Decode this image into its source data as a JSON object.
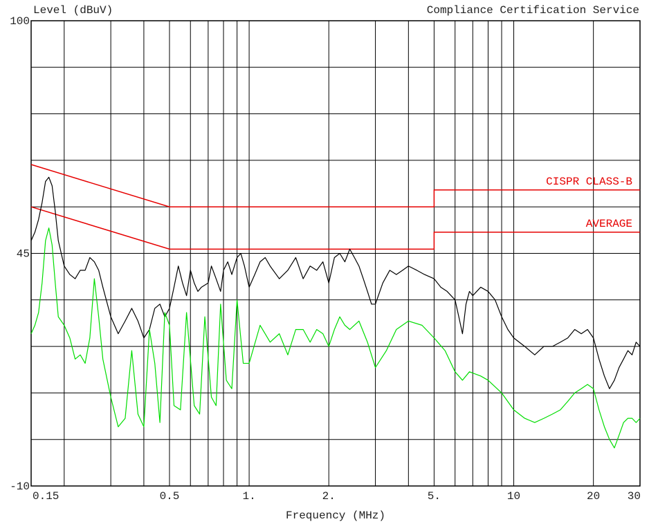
{
  "chart_data": {
    "type": "line",
    "xscale": "log",
    "title": "",
    "ylabel": "Level (dBuV)",
    "xlabel": "Frequency (MHz)",
    "header_right": "Compliance Certification Service",
    "ylim": [
      -10,
      100
    ],
    "xlim": [
      0.15,
      30
    ],
    "grid": true,
    "y_tick_labels": [
      {
        "value": 100,
        "label": "100"
      },
      {
        "value": 45,
        "label": "45"
      },
      {
        "value": -10,
        "label": "-10"
      }
    ],
    "x_tick_labels": [
      {
        "value": 0.15,
        "label": "0.15"
      },
      {
        "value": 0.5,
        "label": "0.5"
      },
      {
        "value": 1,
        "label": "1."
      },
      {
        "value": 2,
        "label": "2."
      },
      {
        "value": 5,
        "label": "5."
      },
      {
        "value": 10,
        "label": "10"
      },
      {
        "value": 20,
        "label": "20"
      },
      {
        "value": 30,
        "label": "30"
      }
    ],
    "x_gridlines": [
      0.2,
      0.3,
      0.4,
      0.5,
      0.6,
      0.7,
      0.8,
      0.9,
      1,
      2,
      3,
      4,
      5,
      6,
      7,
      8,
      9,
      10,
      20
    ],
    "y_gridlines": [
      -10,
      1,
      12,
      23,
      34,
      45,
      56,
      67,
      78,
      89,
      100
    ],
    "limit_lines": [
      {
        "name": "CISPR CLASS-B",
        "color": "#e60000",
        "points": [
          [
            0.15,
            66
          ],
          [
            0.5,
            56
          ],
          [
            5,
            56
          ],
          [
            5,
            60
          ],
          [
            30,
            60
          ]
        ]
      },
      {
        "name": "AVERAGE",
        "color": "#e60000",
        "points": [
          [
            0.15,
            56
          ],
          [
            0.5,
            46
          ],
          [
            5,
            46
          ],
          [
            5,
            50
          ],
          [
            30,
            50
          ]
        ]
      }
    ],
    "series": [
      {
        "color": "#000000",
        "points": [
          [
            0.15,
            48
          ],
          [
            0.155,
            50
          ],
          [
            0.16,
            53
          ],
          [
            0.165,
            57
          ],
          [
            0.17,
            62
          ],
          [
            0.175,
            63
          ],
          [
            0.18,
            61
          ],
          [
            0.185,
            55
          ],
          [
            0.19,
            48
          ],
          [
            0.2,
            42
          ],
          [
            0.21,
            40
          ],
          [
            0.22,
            39
          ],
          [
            0.23,
            41
          ],
          [
            0.24,
            41
          ],
          [
            0.25,
            44
          ],
          [
            0.26,
            43
          ],
          [
            0.27,
            41
          ],
          [
            0.28,
            37
          ],
          [
            0.3,
            30
          ],
          [
            0.32,
            26
          ],
          [
            0.34,
            29
          ],
          [
            0.36,
            32
          ],
          [
            0.38,
            29
          ],
          [
            0.4,
            25
          ],
          [
            0.42,
            27
          ],
          [
            0.44,
            32
          ],
          [
            0.46,
            33
          ],
          [
            0.48,
            30
          ],
          [
            0.5,
            32
          ],
          [
            0.52,
            37
          ],
          [
            0.54,
            42
          ],
          [
            0.56,
            38
          ],
          [
            0.58,
            35
          ],
          [
            0.6,
            41
          ],
          [
            0.62,
            38
          ],
          [
            0.64,
            36
          ],
          [
            0.66,
            37
          ],
          [
            0.7,
            38
          ],
          [
            0.72,
            42
          ],
          [
            0.75,
            39
          ],
          [
            0.78,
            36
          ],
          [
            0.8,
            41
          ],
          [
            0.83,
            43
          ],
          [
            0.86,
            40
          ],
          [
            0.9,
            44
          ],
          [
            0.93,
            45
          ],
          [
            0.96,
            42
          ],
          [
            1.0,
            37
          ],
          [
            1.05,
            40
          ],
          [
            1.1,
            43
          ],
          [
            1.15,
            44
          ],
          [
            1.2,
            42
          ],
          [
            1.3,
            39
          ],
          [
            1.4,
            41
          ],
          [
            1.5,
            44
          ],
          [
            1.6,
            39
          ],
          [
            1.7,
            42
          ],
          [
            1.8,
            41
          ],
          [
            1.9,
            43
          ],
          [
            2.0,
            38
          ],
          [
            2.1,
            44
          ],
          [
            2.2,
            45
          ],
          [
            2.3,
            43
          ],
          [
            2.4,
            46
          ],
          [
            2.5,
            44
          ],
          [
            2.6,
            42
          ],
          [
            2.7,
            39
          ],
          [
            2.8,
            36
          ],
          [
            2.9,
            33
          ],
          [
            3.0,
            33
          ],
          [
            3.2,
            38
          ],
          [
            3.4,
            41
          ],
          [
            3.6,
            40
          ],
          [
            3.8,
            41
          ],
          [
            4.0,
            42
          ],
          [
            4.3,
            41
          ],
          [
            4.6,
            40
          ],
          [
            5.0,
            39
          ],
          [
            5.3,
            37
          ],
          [
            5.6,
            36
          ],
          [
            6.0,
            34
          ],
          [
            6.2,
            30
          ],
          [
            6.4,
            26
          ],
          [
            6.6,
            33
          ],
          [
            6.8,
            36
          ],
          [
            7.0,
            35
          ],
          [
            7.5,
            37
          ],
          [
            8.0,
            36
          ],
          [
            8.5,
            34
          ],
          [
            9.0,
            30
          ],
          [
            9.5,
            27
          ],
          [
            10.0,
            25
          ],
          [
            11.0,
            23
          ],
          [
            12.0,
            21
          ],
          [
            13.0,
            23
          ],
          [
            14.0,
            23
          ],
          [
            15.0,
            24
          ],
          [
            16.0,
            25
          ],
          [
            17.0,
            27
          ],
          [
            18.0,
            26
          ],
          [
            19.0,
            27
          ],
          [
            20.0,
            25
          ],
          [
            21.0,
            20
          ],
          [
            22.0,
            16
          ],
          [
            23.0,
            13
          ],
          [
            24.0,
            15
          ],
          [
            25.0,
            18
          ],
          [
            26.0,
            20
          ],
          [
            27.0,
            22
          ],
          [
            28.0,
            21
          ],
          [
            29.0,
            24
          ],
          [
            30.0,
            23
          ]
        ]
      },
      {
        "color": "#00dd00",
        "points": [
          [
            0.15,
            26
          ],
          [
            0.155,
            28
          ],
          [
            0.16,
            31
          ],
          [
            0.165,
            38
          ],
          [
            0.17,
            48
          ],
          [
            0.175,
            51
          ],
          [
            0.18,
            47
          ],
          [
            0.185,
            38
          ],
          [
            0.19,
            30
          ],
          [
            0.2,
            28
          ],
          [
            0.21,
            25
          ],
          [
            0.22,
            20
          ],
          [
            0.23,
            21
          ],
          [
            0.24,
            19
          ],
          [
            0.25,
            25
          ],
          [
            0.26,
            39
          ],
          [
            0.27,
            30
          ],
          [
            0.28,
            20
          ],
          [
            0.3,
            11
          ],
          [
            0.32,
            4
          ],
          [
            0.34,
            6
          ],
          [
            0.36,
            22
          ],
          [
            0.38,
            7
          ],
          [
            0.4,
            4
          ],
          [
            0.42,
            27
          ],
          [
            0.44,
            19
          ],
          [
            0.46,
            5
          ],
          [
            0.48,
            31
          ],
          [
            0.5,
            28
          ],
          [
            0.52,
            9
          ],
          [
            0.55,
            8
          ],
          [
            0.58,
            31
          ],
          [
            0.62,
            9
          ],
          [
            0.65,
            7
          ],
          [
            0.68,
            30
          ],
          [
            0.72,
            11
          ],
          [
            0.75,
            9
          ],
          [
            0.78,
            33
          ],
          [
            0.82,
            15
          ],
          [
            0.86,
            13
          ],
          [
            0.9,
            34
          ],
          [
            0.95,
            19
          ],
          [
            1.0,
            19
          ],
          [
            1.1,
            28
          ],
          [
            1.2,
            24
          ],
          [
            1.3,
            26
          ],
          [
            1.4,
            21
          ],
          [
            1.5,
            27
          ],
          [
            1.6,
            27
          ],
          [
            1.7,
            24
          ],
          [
            1.8,
            27
          ],
          [
            1.9,
            26
          ],
          [
            2.0,
            23
          ],
          [
            2.1,
            27
          ],
          [
            2.2,
            30
          ],
          [
            2.3,
            28
          ],
          [
            2.4,
            27
          ],
          [
            2.6,
            29
          ],
          [
            2.8,
            24
          ],
          [
            3.0,
            18
          ],
          [
            3.3,
            22
          ],
          [
            3.6,
            27
          ],
          [
            4.0,
            29
          ],
          [
            4.5,
            28
          ],
          [
            5.0,
            25
          ],
          [
            5.5,
            22
          ],
          [
            6.0,
            17
          ],
          [
            6.4,
            15
          ],
          [
            6.8,
            17
          ],
          [
            7.5,
            16
          ],
          [
            8.0,
            15
          ],
          [
            9.0,
            12
          ],
          [
            10.0,
            8
          ],
          [
            11.0,
            6
          ],
          [
            12.0,
            5
          ],
          [
            13.0,
            6
          ],
          [
            14.0,
            7
          ],
          [
            15.0,
            8
          ],
          [
            16.0,
            10
          ],
          [
            17.0,
            12
          ],
          [
            18.0,
            13
          ],
          [
            19.0,
            14
          ],
          [
            20.0,
            13
          ],
          [
            21.0,
            8
          ],
          [
            22.0,
            4
          ],
          [
            23.0,
            1
          ],
          [
            24.0,
            -1
          ],
          [
            25.0,
            2
          ],
          [
            26.0,
            5
          ],
          [
            27.0,
            6
          ],
          [
            28.0,
            6
          ],
          [
            29.0,
            5
          ],
          [
            30.0,
            6
          ]
        ]
      }
    ]
  }
}
